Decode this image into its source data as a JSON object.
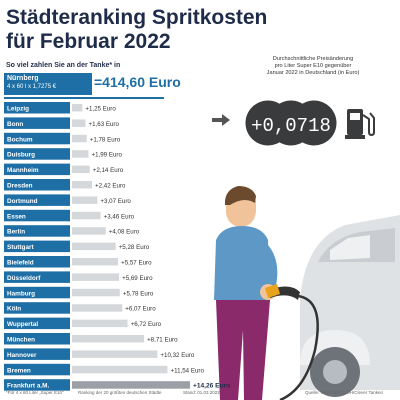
{
  "title": "Städteranking Spritkosten\nfür Februar 2022",
  "title_line1": "Städteranking Spritkosten",
  "title_line2": "für Februar 2022",
  "subtitle": "So viel zahlen Sie an der Tanke* in",
  "nuernberg": {
    "city": "Nürnberg",
    "formula": "4 x 60 l x 1,7275 €",
    "total": "=414,60 Euro"
  },
  "description": "Durchschnittliche Preisänderung\npro Liter Super E10 gegenüber\nJanuar 2022 in Deutschland (in Euro)",
  "price_change": "+0,0718",
  "footer": {
    "note": "*Für 4 x 60 Liter „Super E10\"",
    "ranking": "Ranking der 20 größten deutschen Städte",
    "date": "Stand: 01.03.2022",
    "source": "Quelle: InfoRoad GmbH/Clever Tanken"
  },
  "colors": {
    "dark_blue": "#1f2c49",
    "bar_blue": "#1e6fa5",
    "light_bar": "#d5d8db"
  },
  "icons": [
    "arrow-right-icon",
    "fuel-pump-icon",
    "person-illustration",
    "car-illustration"
  ],
  "chart_data": {
    "type": "bar",
    "orientation": "horizontal",
    "categories": [
      "Leipzig",
      "Bonn",
      "Bochum",
      "Duisburg",
      "Mannheim",
      "Dresden",
      "Dortmund",
      "Essen",
      "Berlin",
      "Stuttgart",
      "Bielefeld",
      "Düsseldorf",
      "Hamburg",
      "Köln",
      "Wuppertal",
      "München",
      "Hannover",
      "Bremen",
      "Frankfurt a.M."
    ],
    "values": [
      1.25,
      1.63,
      1.78,
      1.99,
      2.14,
      2.42,
      3.07,
      3.46,
      4.08,
      5.28,
      5.57,
      5.69,
      5.78,
      6.07,
      6.72,
      8.71,
      10.32,
      11.54,
      14.26
    ],
    "labels": [
      "+1,25 Euro",
      "+1,63 Euro",
      "+1,78 Euro",
      "+1,99 Euro",
      "+2,14 Euro",
      "+2,42 Euro",
      "+3,07 Euro",
      "+3,46 Euro",
      "+4,08 Euro",
      "+5,28 Euro",
      "+5,57 Euro",
      "+5,69 Euro",
      "+5,78 Euro",
      "+6,07 Euro",
      "+6,72 Euro",
      "+8,71 Euro",
      "+10,32 Euro",
      "+11,54 Euro",
      "+14,26 Euro"
    ],
    "highlight": "Frankfurt a.M."
  }
}
